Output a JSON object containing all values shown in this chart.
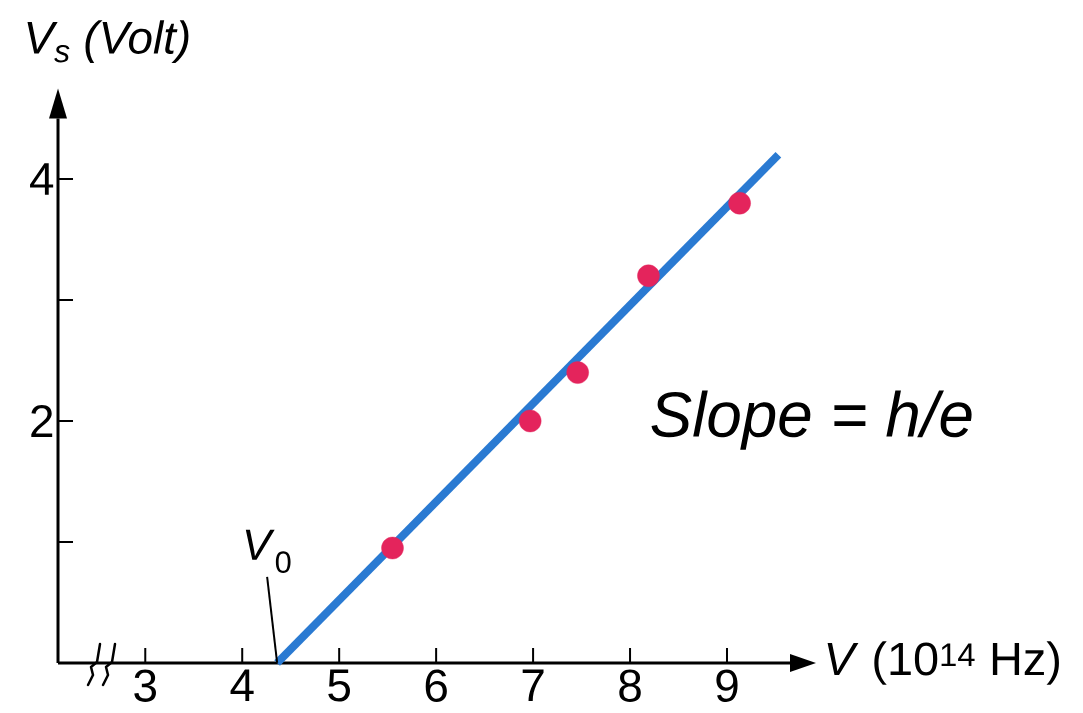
{
  "chart_data": {
    "type": "scatter",
    "xlabel": "*V* (10$^{14}$ Hz)",
    "ylabel": "V$_{s}$ (Volt)",
    "x": [
      5.55,
      6.97,
      7.46,
      8.19,
      9.13
    ],
    "series": [
      {
        "type": "line",
        "x": [
          4.36,
          9.53
        ],
        "values": [
          0,
          4.2
        ],
        "color": "#2a7ad2"
      },
      {
        "values": [
          0.95,
          2.0,
          2.4,
          3.2,
          3.8
        ],
        "color": "#e4245c",
        "marker": "circle"
      }
    ],
    "xlim": [
      2.1,
      9.65
    ],
    "xticks": [
      3,
      4,
      5,
      6,
      7,
      8,
      9
    ],
    "ylim": [
      0,
      4.5
    ],
    "yticks": [
      {
        "value": 1,
        "label": null
      },
      2,
      {
        "value": 3,
        "label": null
      },
      4
    ],
    "annotations": [
      {
        "text": "*V*$_{0}$",
        "x": 4.36,
        "y": 0
      },
      "Slope = h/e"
    ]
  }
}
